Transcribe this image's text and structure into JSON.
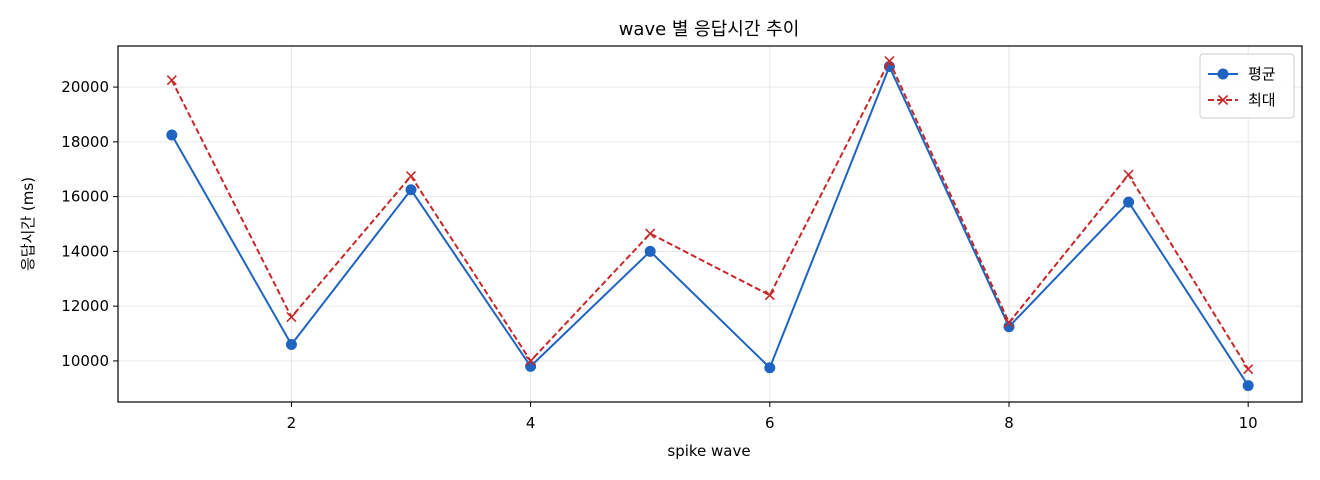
{
  "chart_data": {
    "type": "line",
    "title": "wave 별 응답시간 추이",
    "xlabel": "spike wave",
    "ylabel": "응답시간 (ms)",
    "x": [
      1,
      2,
      3,
      4,
      5,
      6,
      7,
      8,
      9,
      10
    ],
    "xlim": [
      0.55,
      10.45
    ],
    "ylim": [
      8500,
      21500
    ],
    "xticks": [
      2,
      4,
      6,
      8,
      10
    ],
    "yticks": [
      10000,
      12000,
      14000,
      16000,
      18000,
      20000
    ],
    "grid": true,
    "legend_position": "top-right",
    "series": [
      {
        "name": "평균",
        "values": [
          18250,
          10600,
          16250,
          9800,
          14000,
          9750,
          20750,
          11250,
          15800,
          9100
        ],
        "color": "#1f64c0",
        "line_style": "solid",
        "marker": "circle"
      },
      {
        "name": "최대",
        "values": [
          20250,
          11600,
          16750,
          10000,
          14650,
          12400,
          20950,
          11400,
          16800,
          9700
        ],
        "color": "#c62828",
        "line_style": "dashed",
        "marker": "x"
      }
    ]
  }
}
